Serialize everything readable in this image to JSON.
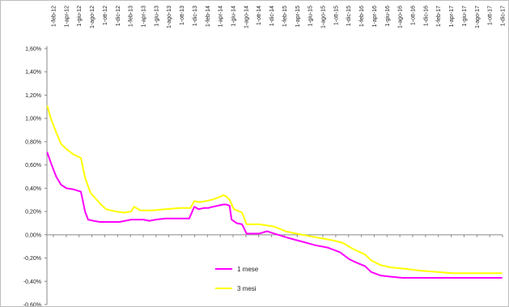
{
  "chart_data": {
    "type": "line",
    "title": "",
    "xlabel": "",
    "ylabel": "",
    "x_axis_position": "top",
    "x_tick_labels": [
      "1-feb-12",
      "1-apr-12",
      "1-giu-12",
      "1-ago-12",
      "1-ott-12",
      "1-dic-12",
      "1-feb-13",
      "1-apr-13",
      "1-giu-13",
      "1-ago-13",
      "1-ott-13",
      "1-dic-13",
      "1-feb-14",
      "1-apr-14",
      "1-giu-14",
      "1-ago-14",
      "1-ott-14",
      "1-dic-14",
      "1-feb-15",
      "1-apr-15",
      "1-giu-15",
      "1-ago-15",
      "1-ott-15",
      "1-dic-15",
      "1-feb-16",
      "1-apr-16",
      "1-giu-16",
      "1-ago-16",
      "1-ott-16",
      "1-dic-16",
      "1-feb-17",
      "1-apr-17",
      "1-giu-17",
      "1-ago-17",
      "1-ott-17",
      "1-dic-17"
    ],
    "y_tick_labels": [
      "1,60%",
      "1,40%",
      "1,20%",
      "1,00%",
      "0,80%",
      "0,60%",
      "0,40%",
      "0,20%",
      "0,00%",
      "-0,20%",
      "-0,40%",
      "-0,60%"
    ],
    "y_tick_values": [
      1.6,
      1.4,
      1.2,
      1.0,
      0.8,
      0.6,
      0.4,
      0.2,
      0.0,
      -0.2,
      -0.4,
      -0.6
    ],
    "ylim": [
      -0.6,
      1.6
    ],
    "xlim": [
      "2012-01-01",
      "2018-02-01"
    ],
    "grid": false,
    "legend_position": "bottom-center",
    "series": [
      {
        "name": "1 mese",
        "color": "#ff00ff",
        "x": [
          "2012-01-02",
          "2012-01-20",
          "2012-02-15",
          "2012-03-10",
          "2012-04-05",
          "2012-05-10",
          "2012-06-15",
          "2012-07-05",
          "2012-07-20",
          "2012-08-15",
          "2012-09-15",
          "2012-11-01",
          "2012-12-20",
          "2013-02-15",
          "2013-04-15",
          "2013-05-15",
          "2013-06-15",
          "2013-08-01",
          "2013-10-15",
          "2013-11-25",
          "2013-12-20",
          "2014-01-10",
          "2014-02-05",
          "2014-02-25",
          "2014-03-20",
          "2014-04-15",
          "2014-05-10",
          "2014-05-25",
          "2014-06-10",
          "2014-06-20",
          "2014-07-15",
          "2014-08-10",
          "2014-09-01",
          "2014-09-15",
          "2014-11-01",
          "2014-12-10",
          "2015-01-15",
          "2015-03-10",
          "2015-04-20",
          "2015-06-01",
          "2015-08-01",
          "2015-10-01",
          "2015-12-01",
          "2016-01-15",
          "2016-02-20",
          "2016-04-01",
          "2016-05-01",
          "2016-06-15",
          "2016-08-01",
          "2016-10-01",
          "2017-01-01",
          "2017-06-01",
          "2018-01-31"
        ],
        "y": [
          0.71,
          0.62,
          0.5,
          0.43,
          0.4,
          0.39,
          0.37,
          0.2,
          0.13,
          0.12,
          0.11,
          0.11,
          0.11,
          0.13,
          0.13,
          0.12,
          0.13,
          0.14,
          0.14,
          0.14,
          0.24,
          0.22,
          0.23,
          0.23,
          0.24,
          0.25,
          0.26,
          0.26,
          0.25,
          0.13,
          0.1,
          0.09,
          0.01,
          0.01,
          0.01,
          0.03,
          0.01,
          -0.02,
          -0.04,
          -0.06,
          -0.09,
          -0.11,
          -0.15,
          -0.21,
          -0.24,
          -0.27,
          -0.32,
          -0.35,
          -0.36,
          -0.37,
          -0.37,
          -0.37,
          -0.37
        ]
      },
      {
        "name": "3 mesi",
        "color": "#ffff00",
        "x": [
          "2012-01-02",
          "2012-01-20",
          "2012-02-15",
          "2012-03-10",
          "2012-04-10",
          "2012-05-10",
          "2012-06-15",
          "2012-07-05",
          "2012-08-01",
          "2012-09-15",
          "2012-10-15",
          "2012-12-01",
          "2013-01-15",
          "2013-02-15",
          "2013-03-01",
          "2013-04-01",
          "2013-06-01",
          "2013-08-01",
          "2013-10-15",
          "2013-12-01",
          "2013-12-20",
          "2014-01-15",
          "2014-02-15",
          "2014-03-15",
          "2014-04-15",
          "2014-05-10",
          "2014-05-25",
          "2014-06-10",
          "2014-07-01",
          "2014-08-10",
          "2014-09-01",
          "2014-11-01",
          "2015-01-15",
          "2015-03-10",
          "2015-05-01",
          "2015-07-01",
          "2015-09-01",
          "2015-11-01",
          "2015-12-15",
          "2016-02-01",
          "2016-04-01",
          "2016-05-01",
          "2016-06-15",
          "2016-08-01",
          "2016-10-01",
          "2017-01-01",
          "2017-06-01",
          "2018-01-31"
        ],
        "y": [
          1.11,
          1.0,
          0.88,
          0.78,
          0.73,
          0.69,
          0.66,
          0.49,
          0.36,
          0.27,
          0.22,
          0.2,
          0.19,
          0.2,
          0.24,
          0.21,
          0.21,
          0.22,
          0.23,
          0.23,
          0.29,
          0.28,
          0.29,
          0.3,
          0.32,
          0.34,
          0.33,
          0.3,
          0.22,
          0.19,
          0.09,
          0.09,
          0.07,
          0.03,
          0.01,
          -0.01,
          -0.03,
          -0.05,
          -0.07,
          -0.12,
          -0.17,
          -0.22,
          -0.26,
          -0.28,
          -0.29,
          -0.31,
          -0.33,
          -0.33
        ]
      }
    ]
  }
}
